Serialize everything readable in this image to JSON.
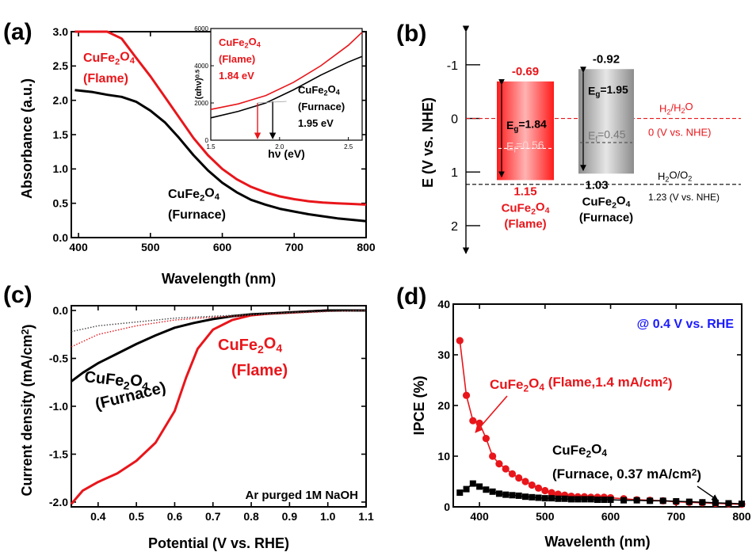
{
  "colors": {
    "red": "#e8161b",
    "black": "#000000",
    "blue": "#1a1aff",
    "grey": "#7a7a7a"
  },
  "panel_labels": [
    "(a)",
    "(b)",
    "(c)",
    "(d)"
  ],
  "chart_data": [
    {
      "panel": "(a)",
      "type": "line",
      "xlabel": "Wavelength (nm)",
      "ylabel": "Absorbance (a.u.)",
      "xlim": [
        390,
        800
      ],
      "ylim": [
        0,
        3.0
      ],
      "xticks": [
        "400",
        "500",
        "600",
        "700",
        "800"
      ],
      "xtick_values": [
        400,
        500,
        600,
        700,
        800
      ],
      "yticks": [
        "0.0",
        "0.5",
        "1.0",
        "1.5",
        "2.0",
        "2.5",
        "3.0"
      ],
      "ytick_values": [
        0,
        0.5,
        1.0,
        1.5,
        2.0,
        2.5,
        3.0
      ],
      "series": [
        {
          "label_lines": [
            "CuFe2O4",
            "(Flame)"
          ],
          "color": "#e8161b",
          "x": [
            395,
            420,
            440,
            460,
            480,
            500,
            520,
            540,
            560,
            580,
            600,
            620,
            640,
            660,
            680,
            700,
            720,
            740,
            760,
            780,
            800
          ],
          "y": [
            3.0,
            3.0,
            3.0,
            2.9,
            2.62,
            2.35,
            2.05,
            1.75,
            1.45,
            1.2,
            1.0,
            0.85,
            0.74,
            0.66,
            0.6,
            0.56,
            0.53,
            0.51,
            0.5,
            0.49,
            0.48
          ]
        },
        {
          "label_lines": [
            "CuFe2O4",
            "(Furnace)"
          ],
          "color": "#000000",
          "x": [
            395,
            420,
            440,
            460,
            480,
            500,
            520,
            540,
            560,
            580,
            600,
            620,
            640,
            660,
            680,
            700,
            720,
            740,
            760,
            780,
            800
          ],
          "y": [
            2.15,
            2.12,
            2.08,
            2.05,
            1.98,
            1.85,
            1.68,
            1.45,
            1.2,
            0.98,
            0.8,
            0.66,
            0.55,
            0.48,
            0.42,
            0.38,
            0.34,
            0.31,
            0.28,
            0.26,
            0.24
          ]
        }
      ],
      "inset": {
        "xlabel": "hν (eV)",
        "ylabel": "(αhν)0.5",
        "xlim": [
          1.5,
          2.6
        ],
        "ylim": [
          0,
          6000
        ],
        "xticks": [
          "1.5",
          "2.0",
          "2.5"
        ],
        "xtick_values": [
          1.5,
          2.0,
          2.5
        ],
        "yticks": [
          "0",
          "2000",
          "4000",
          "6000"
        ],
        "ytick_values": [
          0,
          2000,
          4000,
          6000
        ],
        "series": [
          {
            "name": "Flame",
            "color": "#e8161b",
            "x": [
              1.5,
              1.7,
              1.9,
              2.1,
              2.3,
              2.5,
              2.6
            ],
            "y": [
              1650,
              1950,
              2400,
              3100,
              4000,
              5100,
              5800
            ]
          },
          {
            "name": "Furnace",
            "color": "#000000",
            "x": [
              1.5,
              1.7,
              1.9,
              2.1,
              2.3,
              2.5,
              2.6
            ],
            "y": [
              1200,
              1550,
              2000,
              2700,
              3500,
              4200,
              4500
            ]
          }
        ],
        "annotations": [
          {
            "lines": [
              "CuFe2O4",
              "(Flame)",
              "1.84 eV"
            ],
            "color": "#e8161b",
            "arrow_x": 1.84
          },
          {
            "lines": [
              "CuFe2O4",
              "(Furnace)",
              "1.95 eV"
            ],
            "color": "#000000",
            "arrow_x": 1.95
          }
        ]
      }
    },
    {
      "panel": "(b)",
      "type": "diagram",
      "ylabel": "E (V vs. NHE)",
      "ylim": [
        -1.5,
        2.4
      ],
      "yticks": [
        "-1",
        "0",
        "1",
        "2"
      ],
      "ytick_values": [
        -1,
        0,
        1,
        2
      ],
      "bands": [
        {
          "name_lines": [
            "CuFe2O4",
            "(Flame)"
          ],
          "cb": -0.69,
          "vb": 1.15,
          "ef": 0.56,
          "cb_label": "-0.69",
          "vb_label": "1.15",
          "eg_label": "Eg=1.84",
          "ef_label": "Ef=0.56",
          "color": "#e8161b"
        },
        {
          "name_lines": [
            "CuFe2O4",
            "(Furnace)"
          ],
          "cb": -0.92,
          "vb": 1.03,
          "ef": 0.45,
          "cb_label": "-0.92",
          "vb_label": "1.03",
          "eg_label": "Eg=1.95",
          "ef_label": "Ef=0.45",
          "color": "#7a7a7a"
        }
      ],
      "levels": [
        {
          "value": 0,
          "name": "H2/H2O",
          "label": "0 (V vs. NHE)",
          "color": "#e8161b"
        },
        {
          "value": 1.23,
          "name": "H2O/O2",
          "label": "1.23 (V vs. NHE)",
          "color": "#000000"
        }
      ]
    },
    {
      "panel": "(c)",
      "type": "line",
      "xlabel": "Potential (V vs. RHE)",
      "ylabel": "Current density (mA/cm2)",
      "xlim": [
        0.33,
        1.1
      ],
      "ylim": [
        -2.05,
        0.05
      ],
      "xticks": [
        "0.4",
        "0.5",
        "0.6",
        "0.7",
        "0.8",
        "0.9",
        "1.0",
        "1.1"
      ],
      "xtick_values": [
        0.4,
        0.5,
        0.6,
        0.7,
        0.8,
        0.9,
        1.0,
        1.1
      ],
      "yticks": [
        "0.0",
        "-0.5",
        "-1.0",
        "-1.5",
        "-2.0"
      ],
      "ytick_values": [
        0,
        -0.5,
        -1.0,
        -1.5,
        -2.0
      ],
      "annotation": "Ar purged 1M NaOH",
      "series": [
        {
          "label_lines": [
            "CuFe2O4",
            "(Flame)"
          ],
          "color": "#e8161b",
          "style": "solid",
          "x": [
            0.33,
            0.36,
            0.4,
            0.45,
            0.5,
            0.55,
            0.6,
            0.63,
            0.66,
            0.7,
            0.75,
            0.8,
            0.85,
            0.9,
            0.95,
            1.0,
            1.1
          ],
          "y": [
            -2.02,
            -1.88,
            -1.79,
            -1.7,
            -1.57,
            -1.38,
            -1.05,
            -0.7,
            -0.4,
            -0.2,
            -0.1,
            -0.05,
            -0.03,
            -0.02,
            -0.01,
            0.0,
            0.0
          ]
        },
        {
          "label_lines": [
            "CuFe2O4",
            "(Furnace)"
          ],
          "color": "#000000",
          "style": "solid",
          "x": [
            0.33,
            0.36,
            0.4,
            0.45,
            0.5,
            0.55,
            0.6,
            0.65,
            0.7,
            0.75,
            0.8,
            0.85,
            0.9,
            0.95,
            1.0,
            1.1
          ],
          "y": [
            -0.74,
            -0.65,
            -0.55,
            -0.45,
            -0.35,
            -0.26,
            -0.18,
            -0.13,
            -0.09,
            -0.06,
            -0.04,
            -0.03,
            -0.02,
            -0.01,
            0.0,
            0.0
          ]
        },
        {
          "name": "Flame (dark)",
          "color": "#e8161b",
          "style": "dotted",
          "x": [
            0.33,
            0.4,
            0.5,
            0.6,
            0.7,
            0.8,
            0.9,
            1.0,
            1.1
          ],
          "y": [
            -0.38,
            -0.25,
            -0.16,
            -0.1,
            -0.07,
            -0.05,
            -0.03,
            -0.01,
            0.0
          ]
        },
        {
          "name": "Furnace (dark)",
          "color": "#444444",
          "style": "dotted",
          "x": [
            0.33,
            0.4,
            0.5,
            0.6,
            0.7,
            0.8,
            0.9,
            1.0,
            1.1
          ],
          "y": [
            -0.22,
            -0.16,
            -0.12,
            -0.08,
            -0.06,
            -0.04,
            -0.02,
            -0.01,
            0.0
          ]
        }
      ]
    },
    {
      "panel": "(d)",
      "type": "scatter",
      "xlabel": "Wavelenth (nm)",
      "ylabel": "IPCE (%)",
      "xlim": [
        360,
        800
      ],
      "ylim": [
        0,
        40
      ],
      "xticks": [
        "400",
        "500",
        "600",
        "700",
        "800"
      ],
      "xtick_values": [
        400,
        500,
        600,
        700,
        800
      ],
      "yticks": [
        "0",
        "10",
        "20",
        "30",
        "40"
      ],
      "ytick_values": [
        0,
        10,
        20,
        30,
        40
      ],
      "annotation": "@ 0.4 V vs. RHE",
      "series": [
        {
          "label": "CuFe2O4 (Flame,1.4 mA/cm2)",
          "color": "#e8161b",
          "marker": "circle",
          "x": [
            370,
            380,
            390,
            400,
            410,
            420,
            430,
            440,
            450,
            460,
            470,
            480,
            490,
            500,
            510,
            520,
            530,
            540,
            550,
            560,
            570,
            580,
            590,
            600,
            620,
            640,
            660,
            680,
            700,
            720,
            740,
            760,
            780,
            800
          ],
          "y": [
            32.8,
            22.0,
            17.0,
            16.5,
            13.5,
            10.0,
            8.5,
            7.5,
            6.5,
            5.7,
            5.0,
            4.3,
            3.7,
            3.2,
            2.8,
            2.5,
            2.3,
            2.1,
            2.0,
            2.0,
            1.9,
            1.9,
            1.9,
            1.8,
            1.6,
            1.4,
            1.3,
            1.2,
            1.0,
            0.9,
            0.8,
            0.7,
            0.6,
            0.5
          ]
        },
        {
          "label_lines": [
            "CuFe2O4",
            "(Furnace, 0.37 mA/cm2)"
          ],
          "color": "#000000",
          "marker": "square",
          "x": [
            370,
            380,
            390,
            400,
            410,
            420,
            430,
            440,
            450,
            460,
            470,
            480,
            490,
            500,
            510,
            520,
            530,
            540,
            550,
            560,
            570,
            580,
            590,
            600,
            620,
            640,
            660,
            680,
            700,
            720,
            740,
            760,
            780,
            800
          ],
          "y": [
            2.8,
            3.5,
            4.6,
            4.0,
            3.4,
            3.0,
            2.6,
            2.4,
            2.3,
            2.2,
            2.0,
            1.9,
            1.8,
            1.7,
            1.7,
            1.6,
            1.6,
            1.5,
            1.5,
            1.5,
            1.5,
            1.4,
            1.4,
            1.4,
            1.3,
            1.3,
            1.2,
            1.2,
            1.1,
            1.0,
            0.9,
            0.8,
            0.7,
            0.6
          ]
        }
      ]
    }
  ]
}
